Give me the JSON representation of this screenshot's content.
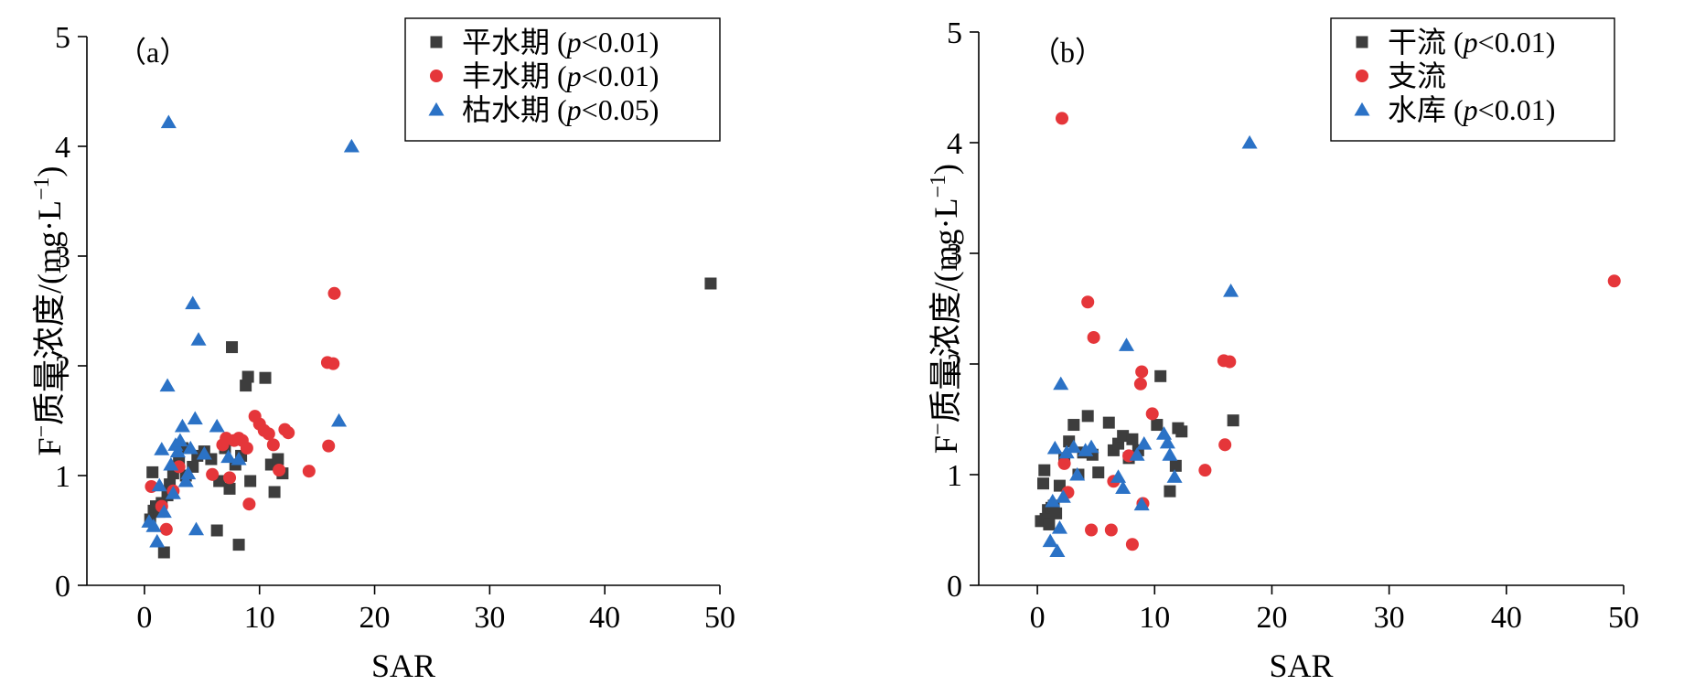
{
  "colors": {
    "gray": "#3d3d3d",
    "red": "#e5363a",
    "blue": "#2b72c6"
  },
  "chart_data": [
    {
      "type": "scatter",
      "panel_label": "（a）",
      "xlabel": "SAR",
      "ylabel_main": "F",
      "ylabel_sup": "−",
      "ylabel_rest": "质量浓度/(mg·L",
      "ylabel_unit_sup": "−1",
      "ylabel_close": ")",
      "xlim": [
        -5,
        50
      ],
      "ylim": [
        0,
        5
      ],
      "xticks": [
        "0",
        "10",
        "20",
        "30",
        "40",
        "50"
      ],
      "yticks": [
        "0",
        "1",
        "2",
        "3",
        "4",
        "5"
      ],
      "legend_position": "top-right",
      "series": [
        {
          "name": "平水期",
          "stat": "(p<0.01)",
          "stat_p": "p",
          "stat_rest": "<0.01)",
          "stat_open": "(",
          "marker": "square",
          "color": "#3d3d3d",
          "points": [
            [
              0.7,
              1.03
            ],
            [
              0.5,
              0.6
            ],
            [
              0.8,
              0.68
            ],
            [
              1.0,
              0.72
            ],
            [
              1.3,
              0.67
            ],
            [
              1.5,
              0.75
            ],
            [
              1.7,
              0.3
            ],
            [
              2.0,
              0.82
            ],
            [
              2.2,
              0.92
            ],
            [
              2.5,
              1.02
            ],
            [
              3.0,
              1.12
            ],
            [
              3.3,
              1.25
            ],
            [
              3.6,
              1.0
            ],
            [
              4.2,
              1.08
            ],
            [
              4.6,
              1.18
            ],
            [
              5.2,
              1.22
            ],
            [
              5.8,
              1.15
            ],
            [
              6.3,
              0.5
            ],
            [
              6.5,
              0.95
            ],
            [
              7.0,
              1.25
            ],
            [
              7.4,
              0.88
            ],
            [
              7.6,
              2.17
            ],
            [
              7.9,
              1.1
            ],
            [
              8.2,
              0.37
            ],
            [
              8.4,
              1.18
            ],
            [
              8.8,
              1.82
            ],
            [
              9.0,
              1.9
            ],
            [
              9.2,
              0.95
            ],
            [
              10.5,
              1.89
            ],
            [
              11.0,
              1.1
            ],
            [
              11.3,
              0.85
            ],
            [
              11.6,
              1.15
            ],
            [
              12.0,
              1.02
            ],
            [
              49.2,
              2.75
            ]
          ]
        },
        {
          "name": "丰水期",
          "stat": "(p<0.01)",
          "stat_p": "p",
          "stat_rest": "<0.01)",
          "stat_open": "(",
          "marker": "circle",
          "color": "#e5363a",
          "points": [
            [
              0.6,
              0.9
            ],
            [
              1.5,
              0.72
            ],
            [
              1.9,
              0.51
            ],
            [
              2.5,
              0.86
            ],
            [
              3.0,
              1.08
            ],
            [
              5.9,
              1.01
            ],
            [
              6.8,
              1.28
            ],
            [
              7.1,
              1.34
            ],
            [
              7.4,
              0.98
            ],
            [
              7.8,
              1.32
            ],
            [
              8.2,
              1.34
            ],
            [
              8.5,
              1.32
            ],
            [
              8.9,
              1.25
            ],
            [
              9.1,
              0.74
            ],
            [
              9.6,
              1.54
            ],
            [
              10.0,
              1.47
            ],
            [
              10.4,
              1.41
            ],
            [
              10.8,
              1.38
            ],
            [
              11.2,
              1.28
            ],
            [
              11.7,
              1.05
            ],
            [
              12.2,
              1.42
            ],
            [
              12.5,
              1.39
            ],
            [
              14.3,
              1.04
            ],
            [
              15.9,
              2.03
            ],
            [
              16.4,
              2.02
            ],
            [
              16.0,
              1.27
            ],
            [
              16.5,
              2.66
            ]
          ]
        },
        {
          "name": "枯水期",
          "stat": "(p<0.05)",
          "stat_p": "p",
          "stat_rest": "<0.05)",
          "stat_open": "(",
          "marker": "triangle",
          "color": "#2b72c6",
          "points": [
            [
              0.4,
              0.58
            ],
            [
              0.8,
              0.54
            ],
            [
              1.1,
              0.4
            ],
            [
              1.3,
              0.91
            ],
            [
              1.5,
              1.24
            ],
            [
              1.7,
              0.67
            ],
            [
              2.0,
              1.82
            ],
            [
              2.1,
              4.22
            ],
            [
              2.3,
              1.1
            ],
            [
              2.5,
              0.84
            ],
            [
              2.7,
              1.28
            ],
            [
              2.9,
              1.22
            ],
            [
              3.1,
              1.32
            ],
            [
              3.3,
              1.45
            ],
            [
              3.6,
              0.95
            ],
            [
              3.8,
              1.02
            ],
            [
              4.0,
              1.25
            ],
            [
              4.2,
              2.57
            ],
            [
              4.4,
              1.52
            ],
            [
              4.5,
              0.51
            ],
            [
              4.7,
              2.24
            ],
            [
              5.2,
              1.2
            ],
            [
              6.3,
              1.45
            ],
            [
              7.3,
              1.17
            ],
            [
              8.2,
              1.15
            ],
            [
              16.9,
              1.5
            ],
            [
              18.0,
              4.0
            ]
          ]
        }
      ]
    },
    {
      "type": "scatter",
      "panel_label": "（b）",
      "xlabel": "SAR",
      "ylabel_main": "F",
      "ylabel_sup": "−",
      "ylabel_rest": "质量浓度/(mg·L",
      "ylabel_unit_sup": "−1",
      "ylabel_close": ")",
      "xlim": [
        -5,
        50
      ],
      "ylim": [
        0,
        5
      ],
      "xticks": [
        "0",
        "10",
        "20",
        "30",
        "40",
        "50"
      ],
      "yticks": [
        "0",
        "1",
        "2",
        "3",
        "4",
        "5"
      ],
      "legend_position": "top-right",
      "series": [
        {
          "name": "干流",
          "stat": "(p<0.01)",
          "stat_p": "p",
          "stat_rest": "<0.01)",
          "stat_open": "(",
          "marker": "square",
          "color": "#3d3d3d",
          "points": [
            [
              0.3,
              0.58
            ],
            [
              0.5,
              0.92
            ],
            [
              0.6,
              1.04
            ],
            [
              0.7,
              0.6
            ],
            [
              0.9,
              0.68
            ],
            [
              1.0,
              0.55
            ],
            [
              1.2,
              0.7
            ],
            [
              1.4,
              0.72
            ],
            [
              1.6,
              0.65
            ],
            [
              1.9,
              0.9
            ],
            [
              2.3,
              1.15
            ],
            [
              2.7,
              1.3
            ],
            [
              3.1,
              1.45
            ],
            [
              3.5,
              1.0
            ],
            [
              3.9,
              1.2
            ],
            [
              4.3,
              1.53
            ],
            [
              4.7,
              1.18
            ],
            [
              5.2,
              1.02
            ],
            [
              6.1,
              1.47
            ],
            [
              6.5,
              1.22
            ],
            [
              6.9,
              1.28
            ],
            [
              7.3,
              1.35
            ],
            [
              7.8,
              1.15
            ],
            [
              8.1,
              1.32
            ],
            [
              8.6,
              1.22
            ],
            [
              10.2,
              1.45
            ],
            [
              10.5,
              1.89
            ],
            [
              11.3,
              0.85
            ],
            [
              11.8,
              1.08
            ],
            [
              12.0,
              1.42
            ],
            [
              12.3,
              1.39
            ],
            [
              16.7,
              1.49
            ]
          ]
        },
        {
          "name": "支流",
          "stat": "",
          "stat_p": "",
          "stat_rest": "",
          "stat_open": "",
          "marker": "circle",
          "color": "#e5363a",
          "points": [
            [
              2.1,
              4.22
            ],
            [
              2.3,
              1.1
            ],
            [
              2.6,
              0.84
            ],
            [
              4.3,
              2.56
            ],
            [
              4.6,
              0.5
            ],
            [
              4.8,
              2.24
            ],
            [
              6.3,
              0.5
            ],
            [
              6.5,
              0.94
            ],
            [
              7.8,
              1.17
            ],
            [
              8.1,
              0.37
            ],
            [
              8.8,
              1.82
            ],
            [
              8.9,
              1.93
            ],
            [
              9.0,
              0.74
            ],
            [
              9.8,
              1.55
            ],
            [
              14.3,
              1.04
            ],
            [
              15.9,
              2.03
            ],
            [
              16.0,
              1.27
            ],
            [
              16.4,
              2.02
            ],
            [
              49.2,
              2.75
            ]
          ]
        },
        {
          "name": "水库",
          "stat": "(p<0.01)",
          "stat_p": "p",
          "stat_rest": "<0.01)",
          "stat_open": "(",
          "marker": "triangle",
          "color": "#2b72c6",
          "points": [
            [
              1.1,
              0.4
            ],
            [
              1.3,
              0.76
            ],
            [
              1.5,
              1.24
            ],
            [
              1.7,
              0.31
            ],
            [
              1.9,
              0.52
            ],
            [
              2.0,
              1.82
            ],
            [
              2.2,
              0.8
            ],
            [
              2.5,
              1.2
            ],
            [
              3.1,
              1.25
            ],
            [
              3.4,
              1.0
            ],
            [
              4.1,
              1.22
            ],
            [
              4.6,
              1.25
            ],
            [
              6.9,
              0.98
            ],
            [
              7.3,
              0.88
            ],
            [
              7.6,
              2.17
            ],
            [
              8.5,
              1.18
            ],
            [
              8.9,
              0.73
            ],
            [
              9.1,
              1.28
            ],
            [
              10.8,
              1.37
            ],
            [
              11.1,
              1.29
            ],
            [
              11.3,
              1.18
            ],
            [
              11.7,
              0.98
            ],
            [
              16.5,
              2.66
            ],
            [
              18.1,
              4.0
            ]
          ]
        }
      ]
    }
  ]
}
